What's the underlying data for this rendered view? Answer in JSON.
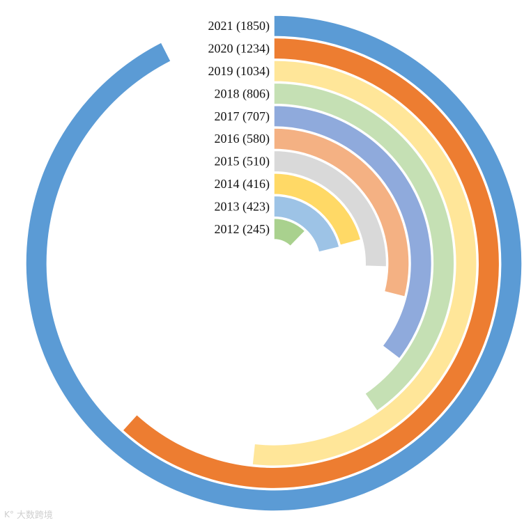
{
  "chart_data": {
    "type": "radial-bar",
    "max_value": 1850,
    "full_circle_value": 2000,
    "colors": {
      "background": "#ffffff",
      "separator": "#ffffff",
      "label": "#111111"
    },
    "series": [
      {
        "label": "2021 (1850)",
        "year": "2021",
        "value": 1850,
        "color": "#5B9BD5"
      },
      {
        "label": "2020 (1234)",
        "year": "2020",
        "value": 1234,
        "color": "#ED7D31"
      },
      {
        "label": "2019 (1034)",
        "year": "2019",
        "value": 1034,
        "color": "#FFE699"
      },
      {
        "label": "2018 (806)",
        "year": "2018",
        "value": 806,
        "color": "#C5E0B4"
      },
      {
        "label": "2017 (707)",
        "year": "2017",
        "value": 707,
        "color": "#8FAADC"
      },
      {
        "label": "2016 (580)",
        "year": "2016",
        "value": 580,
        "color": "#F4B183"
      },
      {
        "label": "2015 (510)",
        "year": "2015",
        "value": 510,
        "color": "#D9D9D9"
      },
      {
        "label": "2014 (416)",
        "year": "2014",
        "value": 416,
        "color": "#FFD966"
      },
      {
        "label": "2013 (423)",
        "year": "2013",
        "value": 423,
        "color": "#9DC3E6"
      },
      {
        "label": "2012 (245)",
        "year": "2012",
        "value": 245,
        "color": "#A9D18E"
      }
    ]
  },
  "watermark": {
    "logo": "K°",
    "text": "大数跨境"
  }
}
